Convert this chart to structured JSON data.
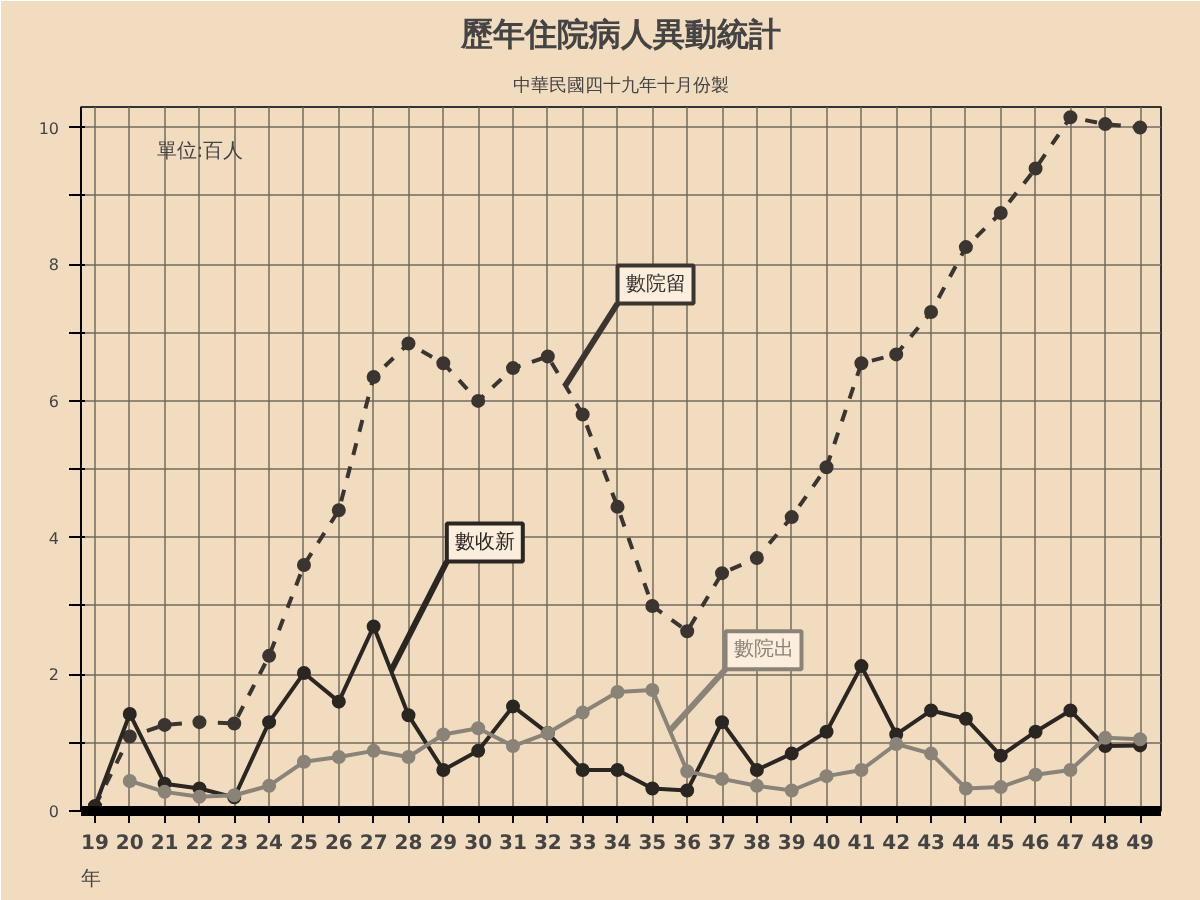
{
  "chart_data": {
    "type": "line",
    "title": "歷年住院病人異動統計",
    "subtitle": "中華民國四十九年十月份製",
    "annotations": [
      "單位:百人",
      "年"
    ],
    "x": [
      19,
      20,
      21,
      22,
      23,
      24,
      25,
      26,
      27,
      28,
      29,
      30,
      31,
      32,
      33,
      34,
      35,
      36,
      37,
      38,
      39,
      40,
      41,
      42,
      43,
      44,
      45,
      46,
      47,
      48,
      49
    ],
    "series": [
      {
        "name": "數院留",
        "color": "#3a3530",
        "line_style": "dashed",
        "values": [
          0.07,
          1.09,
          1.26,
          1.3,
          1.28,
          2.27,
          3.6,
          4.4,
          6.35,
          6.84,
          6.55,
          6.0,
          6.48,
          6.65,
          5.8,
          4.45,
          3.0,
          2.63,
          3.48,
          3.7,
          4.3,
          5.03,
          6.55,
          6.68,
          7.3,
          8.25,
          8.75,
          9.4,
          10.15,
          10.05,
          10.0
        ]
      },
      {
        "name": "數收新",
        "color": "#2a2622",
        "line_style": "solid",
        "values": [
          0.07,
          1.42,
          0.4,
          0.33,
          0.2,
          1.3,
          2.02,
          1.6,
          2.7,
          1.4,
          0.6,
          0.88,
          1.53,
          1.14,
          0.6,
          0.6,
          0.33,
          0.3,
          1.3,
          0.6,
          0.84,
          1.16,
          2.12,
          1.12,
          1.47,
          1.35,
          0.81,
          1.16,
          1.47,
          0.95,
          0.96
        ]
      },
      {
        "name": "數院出",
        "color": "#8a8378",
        "line_style": "solid",
        "values": [
          null,
          0.44,
          0.28,
          0.21,
          0.23,
          0.37,
          0.72,
          0.79,
          0.88,
          0.79,
          1.12,
          1.21,
          0.95,
          1.14,
          1.44,
          1.74,
          1.77,
          0.58,
          0.47,
          0.37,
          0.3,
          0.51,
          0.6,
          0.98,
          0.84,
          0.33,
          0.35,
          0.53,
          0.6,
          1.07,
          1.05
        ]
      }
    ],
    "xlim": [
      18.6,
      49.6
    ],
    "ylim": [
      0,
      10.3
    ],
    "xticks": [
      19,
      20,
      21,
      22,
      23,
      24,
      25,
      26,
      27,
      28,
      29,
      30,
      31,
      32,
      33,
      34,
      35,
      36,
      37,
      38,
      39,
      40,
      41,
      42,
      43,
      44,
      45,
      46,
      47,
      48,
      49
    ],
    "yticks": [
      0,
      {
        "value": 1,
        "label": null
      },
      2,
      {
        "value": 3,
        "label": null
      },
      4,
      {
        "value": 5,
        "label": null
      },
      6,
      {
        "value": 7,
        "label": null
      },
      8,
      {
        "value": 9,
        "label": null
      },
      10
    ],
    "grid": true,
    "marker": "circle"
  }
}
